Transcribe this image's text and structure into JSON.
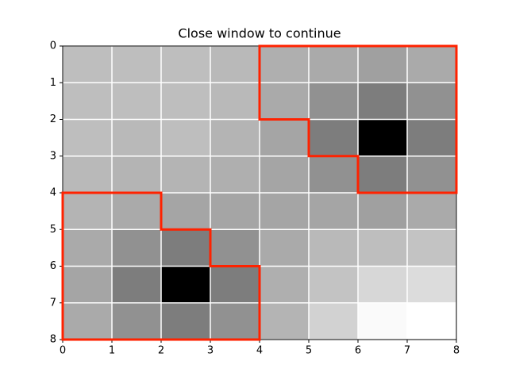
{
  "chart_data": {
    "type": "heatmap",
    "title": "Close window to continue",
    "xlim": [
      0,
      8
    ],
    "ylim": [
      8,
      0
    ],
    "xticks": [
      0,
      1,
      2,
      3,
      4,
      5,
      6,
      7,
      8
    ],
    "yticks": [
      0,
      1,
      2,
      3,
      4,
      5,
      6,
      7,
      8
    ],
    "grid": true,
    "grid_color": "#ffffff",
    "colormap": "gray",
    "values": [
      [
        190,
        190,
        190,
        185,
        175,
        170,
        160,
        170
      ],
      [
        190,
        190,
        190,
        185,
        170,
        145,
        125,
        145
      ],
      [
        190,
        185,
        190,
        180,
        165,
        125,
        0,
        125
      ],
      [
        185,
        180,
        180,
        175,
        165,
        145,
        125,
        145
      ],
      [
        180,
        170,
        165,
        165,
        165,
        165,
        160,
        170
      ],
      [
        170,
        145,
        125,
        145,
        170,
        185,
        190,
        195
      ],
      [
        165,
        125,
        0,
        125,
        175,
        195,
        215,
        220
      ],
      [
        170,
        145,
        125,
        145,
        180,
        210,
        250,
        255
      ]
    ],
    "outline_color": "#ff2200",
    "outlines": [
      {
        "x": [
          4,
          8,
          8,
          6,
          6,
          5,
          5,
          4
        ],
        "y": [
          0,
          0,
          4,
          4,
          3,
          3,
          2,
          2
        ]
      },
      {
        "x": [
          0,
          2,
          2,
          3,
          3,
          4,
          4,
          0
        ],
        "y": [
          4,
          4,
          5,
          5,
          6,
          6,
          8,
          8
        ]
      }
    ]
  }
}
